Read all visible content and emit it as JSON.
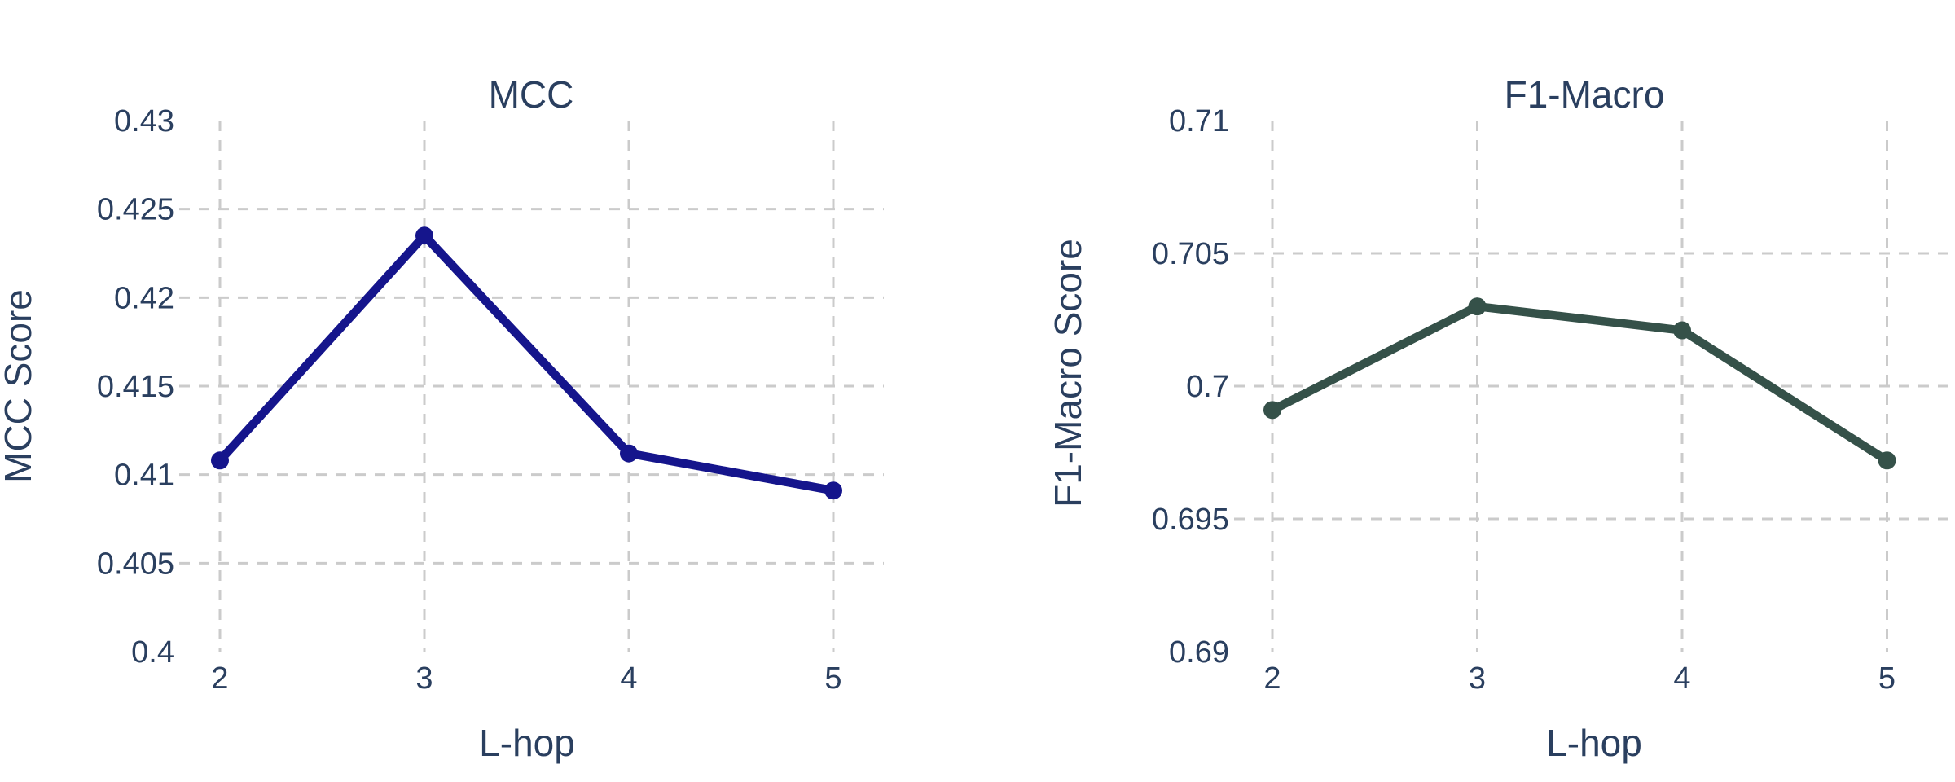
{
  "figure": {
    "background": "#ffffff"
  },
  "colors": {
    "text": "#2a3f5f",
    "grid": "#cbcbcb"
  },
  "chart_data": [
    {
      "type": "line",
      "title": "MCC",
      "xlabel": "L-hop",
      "ylabel": "MCC Score",
      "series_name": "MCC",
      "x": [
        2,
        3,
        4,
        5
      ],
      "values": [
        0.4108,
        0.4235,
        0.4112,
        0.4091
      ],
      "line_color": "#15158c",
      "marker": "circle",
      "xlim": [
        2,
        5
      ],
      "ylim": [
        0.4,
        0.43
      ],
      "xticks": [
        2,
        3,
        4,
        5
      ],
      "xtick_labels": [
        "2",
        "3",
        "4",
        "5"
      ],
      "yticks": [
        0.4,
        0.405,
        0.41,
        0.415,
        0.42,
        0.425,
        0.43
      ],
      "ytick_labels": [
        "0.4",
        "0.405",
        "0.41",
        "0.415",
        "0.42",
        "0.425",
        "0.43"
      ],
      "grid": "dashed",
      "legend": "none"
    },
    {
      "type": "line",
      "title": "F1-Macro",
      "xlabel": "L-hop",
      "ylabel": "F1-Macro Score",
      "series_name": "F1-Macro",
      "x": [
        2,
        3,
        4,
        5
      ],
      "values": [
        0.6991,
        0.703,
        0.7021,
        0.6972
      ],
      "line_color": "#355149",
      "marker": "circle",
      "xlim": [
        2,
        5
      ],
      "ylim": [
        0.69,
        0.71
      ],
      "xticks": [
        2,
        3,
        4,
        5
      ],
      "xtick_labels": [
        "2",
        "3",
        "4",
        "5"
      ],
      "yticks": [
        0.69,
        0.695,
        0.7,
        0.705,
        0.71
      ],
      "ytick_labels": [
        "0.69",
        "0.695",
        "0.7",
        "0.705",
        "0.71"
      ],
      "grid": "dashed",
      "legend": "none"
    }
  ]
}
